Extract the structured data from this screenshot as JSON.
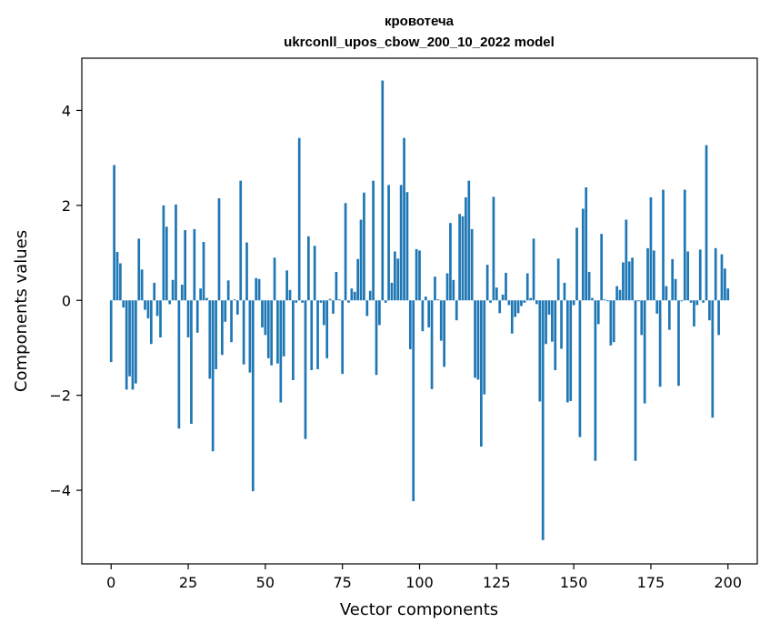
{
  "chart_data": {
    "type": "bar",
    "title": "кровотеча",
    "subtitle": "ukrconll_upos_cbow_200_10_2022 model",
    "xlabel": "Vector components",
    "ylabel": "Components values",
    "xlim": [
      -9.5,
      209.5
    ],
    "ylim": [
      -5.55,
      5.1
    ],
    "xticks": [
      0,
      25,
      50,
      75,
      100,
      125,
      150,
      175,
      200
    ],
    "yticks": [
      -4,
      -2,
      0,
      2,
      4
    ],
    "ytick_labels": [
      "−4",
      "−2",
      "0",
      "2",
      "4"
    ],
    "color": "#1f77b4",
    "values": [
      -1.3,
      2.85,
      1.02,
      0.78,
      -0.15,
      -1.88,
      -1.6,
      -1.88,
      -1.75,
      1.3,
      0.65,
      -0.2,
      -0.38,
      -0.92,
      0.37,
      -0.33,
      -0.78,
      2.0,
      1.55,
      -0.08,
      0.43,
      2.02,
      -2.7,
      0.33,
      1.48,
      -0.78,
      -2.6,
      1.5,
      -0.68,
      0.25,
      1.23,
      0.05,
      -1.65,
      -3.18,
      -1.45,
      2.15,
      -1.15,
      -0.45,
      0.42,
      -0.88,
      0.02,
      -0.3,
      2.52,
      -1.35,
      1.22,
      -1.52,
      -4.02,
      0.47,
      0.45,
      -0.57,
      -0.73,
      -1.22,
      -1.37,
      0.9,
      -1.33,
      -2.15,
      -1.18,
      0.63,
      0.22,
      -1.68,
      -0.05,
      3.42,
      -0.05,
      -2.92,
      1.35,
      -1.47,
      1.15,
      -1.45,
      -0.05,
      -0.52,
      -1.22,
      0.03,
      -0.28,
      0.6,
      0.02,
      -1.55,
      2.05,
      -0.05,
      0.25,
      0.18,
      0.87,
      1.7,
      2.27,
      -0.33,
      0.2,
      2.52,
      -1.57,
      -0.52,
      4.63,
      -0.05,
      2.43,
      0.37,
      1.03,
      0.88,
      2.43,
      3.42,
      2.28,
      -1.03,
      -4.23,
      1.08,
      1.05,
      -0.65,
      0.08,
      -0.57,
      -1.87,
      0.5,
      0.02,
      -0.85,
      -1.4,
      0.57,
      1.63,
      0.43,
      -0.42,
      1.82,
      1.77,
      2.17,
      2.52,
      1.5,
      -1.63,
      -1.67,
      -3.08,
      -1.98,
      0.75,
      -0.05,
      2.18,
      0.27,
      -0.27,
      0.12,
      0.58,
      -0.1,
      -0.7,
      -0.35,
      -0.27,
      -0.12,
      -0.05,
      0.57,
      0.05,
      1.3,
      -0.08,
      -2.13,
      -5.05,
      -0.92,
      -0.3,
      -0.87,
      -1.47,
      0.88,
      -1.02,
      0.37,
      -2.15,
      -2.12,
      -0.1,
      1.53,
      -2.88,
      1.93,
      2.38,
      0.6,
      0.05,
      -3.38,
      -0.5,
      1.4,
      0.02,
      -0.02,
      -0.95,
      -0.88,
      0.3,
      0.22,
      0.8,
      1.7,
      0.82,
      0.9,
      -3.38,
      -0.02,
      -0.73,
      -2.17,
      1.1,
      2.17,
      1.05,
      -0.28,
      -1.82,
      2.33,
      0.3,
      -0.62,
      0.87,
      0.45,
      -1.8,
      -0.02,
      2.33,
      1.03,
      -0.05,
      -0.55,
      -0.1,
      1.07,
      -0.05,
      3.27,
      -0.42,
      -2.47,
      1.1,
      -0.73,
      0.97,
      0.67,
      0.25
    ]
  }
}
